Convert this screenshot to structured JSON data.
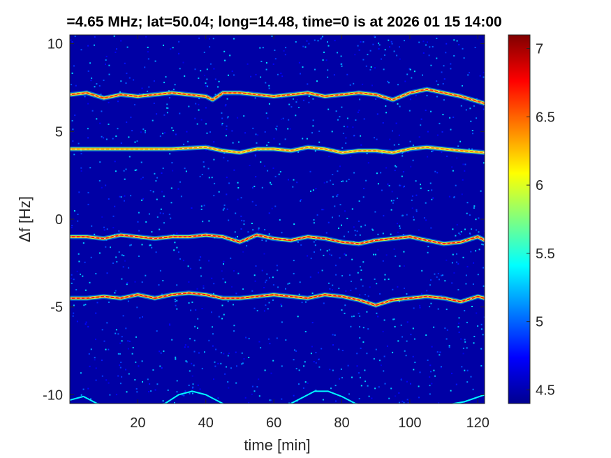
{
  "chart_data": {
    "type": "heatmap",
    "title": "=4.65 MHz;  lat=50.04; long=14.48, time=0 is at 2026 01 15 14:00",
    "xlabel": "time [min]",
    "ylabel": "Δf [Hz]",
    "xlim": [
      0,
      122
    ],
    "ylim": [
      -10.5,
      10.5
    ],
    "x_ticks": [
      20,
      40,
      60,
      80,
      100,
      120
    ],
    "y_ticks": [
      10,
      5,
      0,
      -5,
      -10
    ],
    "colorbar": {
      "range": [
        4.4,
        7.1
      ],
      "ticks": [
        7,
        6.5,
        6,
        5.5,
        5,
        4.5
      ],
      "colormap": "jet"
    },
    "background_level": 4.5,
    "traces": [
      {
        "name": "",
        "intensity": 6.6,
        "x": [
          0,
          5,
          10,
          15,
          20,
          25,
          30,
          35,
          40,
          42,
          45,
          50,
          55,
          60,
          65,
          70,
          75,
          80,
          85,
          90,
          95,
          100,
          105,
          110,
          115,
          122
        ],
        "y": [
          7.1,
          7.2,
          6.9,
          7.1,
          7.0,
          7.1,
          7.2,
          7.1,
          7.0,
          6.8,
          7.2,
          7.2,
          7.1,
          7.0,
          7.1,
          7.2,
          7.0,
          7.1,
          7.2,
          7.1,
          6.8,
          7.2,
          7.4,
          7.2,
          7.0,
          6.6
        ]
      },
      {
        "name": "",
        "intensity": 6.4,
        "x": [
          0,
          10,
          20,
          30,
          40,
          45,
          50,
          55,
          60,
          65,
          70,
          75,
          80,
          85,
          90,
          95,
          100,
          105,
          110,
          115,
          122
        ],
        "y": [
          4.0,
          4.0,
          4.0,
          4.0,
          4.1,
          3.9,
          3.8,
          4.0,
          4.0,
          3.9,
          4.1,
          4.0,
          3.8,
          3.9,
          3.9,
          3.8,
          4.0,
          4.1,
          4.0,
          3.9,
          3.8
        ]
      },
      {
        "name": "",
        "intensity": 6.7,
        "x": [
          0,
          5,
          10,
          15,
          20,
          25,
          30,
          35,
          40,
          45,
          50,
          55,
          60,
          65,
          70,
          75,
          80,
          85,
          90,
          95,
          100,
          105,
          110,
          115,
          120,
          122
        ],
        "y": [
          -1.0,
          -1.0,
          -1.1,
          -0.9,
          -1.0,
          -1.1,
          -1.0,
          -1.0,
          -0.9,
          -1.0,
          -1.3,
          -0.9,
          -1.1,
          -1.2,
          -1.0,
          -1.1,
          -1.3,
          -1.4,
          -1.2,
          -1.1,
          -1.0,
          -1.2,
          -1.4,
          -1.3,
          -1.0,
          -1.2
        ]
      },
      {
        "name": "",
        "intensity": 6.7,
        "x": [
          0,
          5,
          10,
          15,
          20,
          25,
          30,
          35,
          40,
          45,
          50,
          55,
          60,
          65,
          70,
          75,
          80,
          85,
          90,
          95,
          100,
          105,
          110,
          115,
          120,
          122
        ],
        "y": [
          -4.5,
          -4.5,
          -4.4,
          -4.5,
          -4.3,
          -4.5,
          -4.3,
          -4.2,
          -4.3,
          -4.5,
          -4.5,
          -4.4,
          -4.3,
          -4.4,
          -4.5,
          -4.3,
          -4.4,
          -4.6,
          -4.9,
          -4.6,
          -4.5,
          -4.4,
          -4.5,
          -4.7,
          -4.4,
          -4.5
        ]
      },
      {
        "name": "",
        "intensity": 5.4,
        "x": [
          0,
          4,
          8,
          12,
          16,
          20,
          24,
          28,
          32,
          36,
          40,
          44,
          46,
          50,
          58,
          64,
          68,
          72,
          76,
          80,
          84,
          88,
          92,
          110,
          116,
          122
        ],
        "y": [
          -10.3,
          -10.1,
          -10.5,
          -10.6,
          -10.6,
          -10.6,
          -10.6,
          -10.5,
          -10.0,
          -9.8,
          -10.0,
          -10.4,
          -10.6,
          -10.6,
          -10.6,
          -10.6,
          -10.2,
          -9.8,
          -9.8,
          -10.1,
          -10.5,
          -10.6,
          -10.6,
          -10.6,
          -10.4,
          -10.0
        ]
      }
    ]
  }
}
